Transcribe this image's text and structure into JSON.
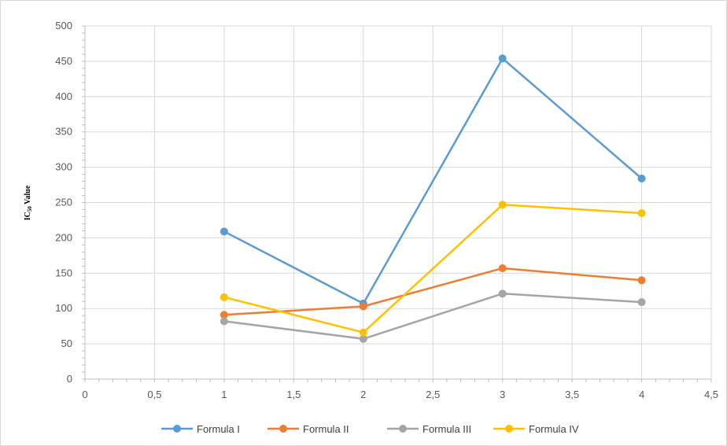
{
  "chart_data": {
    "type": "scatter",
    "title": "",
    "xlabel": "",
    "ylabel": "IC50 Value",
    "ylabel_main": "IC",
    "ylabel_sub": "50",
    "ylabel_rest": " Value",
    "xlim": [
      0,
      4.5
    ],
    "ylim": [
      0,
      500
    ],
    "x_ticks": [
      0,
      0.5,
      1,
      1.5,
      2,
      2.5,
      3,
      3.5,
      4,
      4.5
    ],
    "x_tick_labels": [
      "0",
      "0,5",
      "1",
      "1,5",
      "2",
      "2,5",
      "3",
      "3,5",
      "4",
      "4,5"
    ],
    "y_ticks": [
      0,
      50,
      100,
      150,
      200,
      250,
      300,
      350,
      400,
      450,
      500
    ],
    "y_tick_labels": [
      "0",
      "50",
      "100",
      "150",
      "200",
      "250",
      "300",
      "350",
      "400",
      "450",
      "500"
    ],
    "grid": true,
    "legend_position": "bottom",
    "series": [
      {
        "name": "Formula I",
        "color": "#5b9bd5",
        "x": [
          1,
          2,
          3,
          4
        ],
        "y": [
          209,
          107,
          454,
          284
        ]
      },
      {
        "name": "Formula II",
        "color": "#ed7d31",
        "x": [
          1,
          2,
          3,
          4
        ],
        "y": [
          91,
          103,
          157,
          140
        ]
      },
      {
        "name": "Formula III",
        "color": "#a5a5a5",
        "x": [
          1,
          2,
          3,
          4
        ],
        "y": [
          82,
          57,
          121,
          109
        ]
      },
      {
        "name": "Formula IV",
        "color": "#ffc000",
        "x": [
          1,
          2,
          3,
          4
        ],
        "y": [
          116,
          66,
          247,
          235
        ]
      }
    ]
  }
}
